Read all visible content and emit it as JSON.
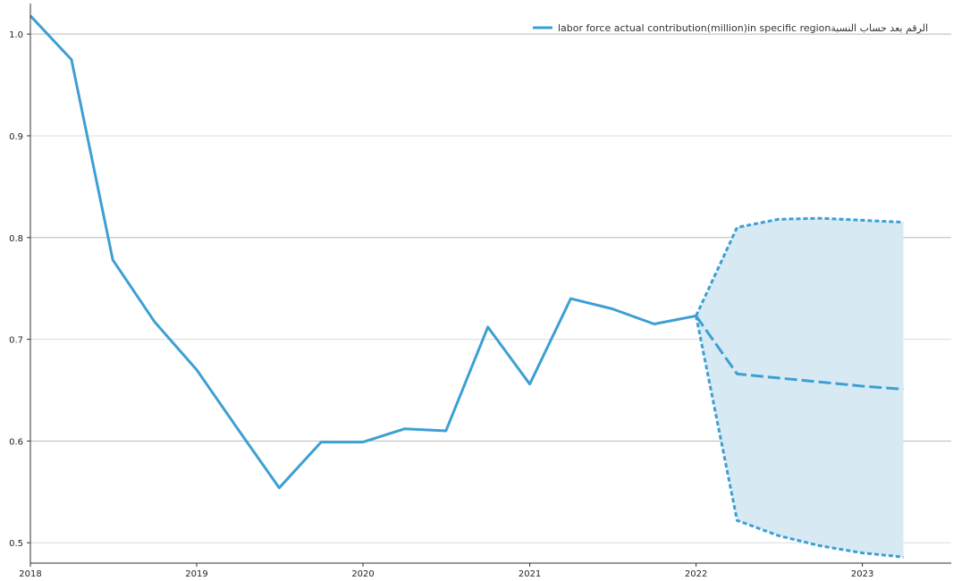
{
  "chart_data": {
    "type": "line",
    "title": "",
    "xlabel": "",
    "ylabel": "",
    "legend": {
      "position": "top-right",
      "entries": [
        "labor force actual contribution(million)in specific regionالرقم بعد حساب النسبة"
      ]
    },
    "grid": {
      "y": true,
      "x": false
    },
    "xlim": [
      "2018-01-01",
      "2023-07-15"
    ],
    "ylim": [
      0.48,
      1.03
    ],
    "x_ticks": [
      "2018",
      "2019",
      "2020",
      "2021",
      "2022",
      "2023"
    ],
    "y_ticks": [
      "0.5",
      "0.6",
      "0.7",
      "0.8",
      "0.9",
      "1.0"
    ],
    "series": [
      {
        "name": "labor force actual contribution(million)in specific regionالرقم بعد حساب النسبة",
        "color": "#3d9fd3",
        "x": [
          "2018-01-01",
          "2018-04-01",
          "2018-07-01",
          "2018-10-01",
          "2019-01-01",
          "2019-04-01",
          "2019-07-01",
          "2019-10-01",
          "2020-01-01",
          "2020-04-01",
          "2020-07-01",
          "2020-10-01",
          "2021-01-01",
          "2021-04-01",
          "2021-07-01",
          "2021-10-01",
          "2022-01-01"
        ],
        "values": [
          1.018,
          0.975,
          0.778,
          0.717,
          0.67,
          0.612,
          0.554,
          0.599,
          0.599,
          0.612,
          0.61,
          0.712,
          0.656,
          0.74,
          0.73,
          0.715,
          0.723
        ]
      }
    ],
    "forecast": {
      "color": "#3d9fd3",
      "band_color": "#d7eaf4",
      "x": [
        "2022-01-01",
        "2022-04-01",
        "2022-07-01",
        "2022-10-01",
        "2023-01-01",
        "2023-04-01"
      ],
      "mean": [
        0.723,
        0.666,
        0.662,
        0.658,
        0.654,
        0.651
      ],
      "upper": [
        0.723,
        0.81,
        0.818,
        0.819,
        0.817,
        0.815
      ],
      "lower": [
        0.723,
        0.522,
        0.507,
        0.497,
        0.49,
        0.486
      ]
    }
  }
}
